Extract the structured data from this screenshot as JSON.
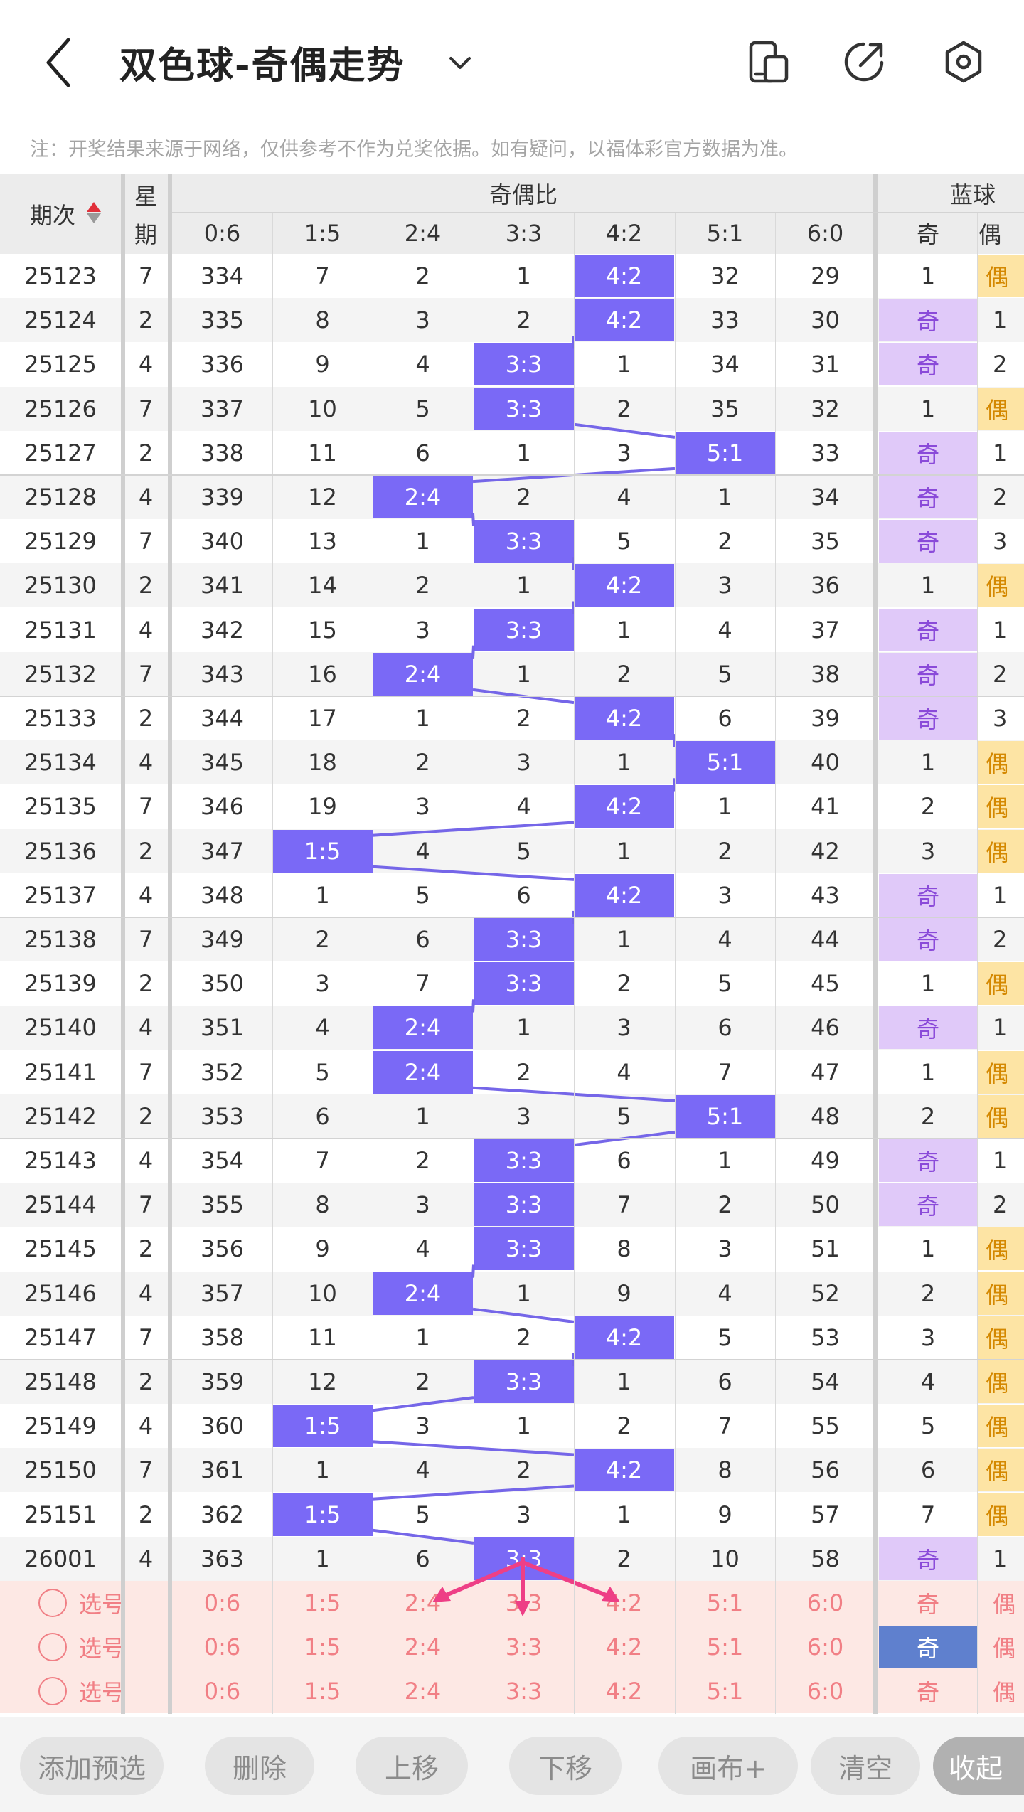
{
  "header": {
    "title": "双色球-奇偶走势"
  },
  "note": "注：开奖结果来源于网络，仅供参考不作为兑奖依据。如有疑问，以福体彩官方数据为准。",
  "table": {
    "period_label": "期次",
    "weekday_label_top": "星",
    "weekday_label_bottom": "期",
    "group_ratio": "奇偶比",
    "group_blue": "蓝球",
    "ratios": [
      "0:6",
      "1:5",
      "2:4",
      "3:3",
      "4:2",
      "5:1",
      "6:0"
    ],
    "blue_cols": [
      "奇",
      "偶"
    ],
    "rows": [
      {
        "period": "25123",
        "weekday": "7",
        "cells": [
          "334",
          "7",
          "2",
          "1",
          "4:2",
          "32",
          "29"
        ],
        "hit": 4,
        "blue_odd": "1",
        "blue_even": "偶"
      },
      {
        "period": "25124",
        "weekday": "2",
        "cells": [
          "335",
          "8",
          "3",
          "2",
          "4:2",
          "33",
          "30"
        ],
        "hit": 4,
        "blue_odd": "奇",
        "blue_even": "1"
      },
      {
        "period": "25125",
        "weekday": "4",
        "cells": [
          "336",
          "9",
          "4",
          "3:3",
          "1",
          "34",
          "31"
        ],
        "hit": 3,
        "blue_odd": "奇",
        "blue_even": "2"
      },
      {
        "period": "25126",
        "weekday": "7",
        "cells": [
          "337",
          "10",
          "5",
          "3:3",
          "2",
          "35",
          "32"
        ],
        "hit": 3,
        "blue_odd": "1",
        "blue_even": "偶"
      },
      {
        "period": "25127",
        "weekday": "2",
        "cells": [
          "338",
          "11",
          "6",
          "1",
          "3",
          "5:1",
          "33"
        ],
        "hit": 5,
        "blue_odd": "奇",
        "blue_even": "1"
      },
      {
        "period": "25128",
        "weekday": "4",
        "cells": [
          "339",
          "12",
          "2:4",
          "2",
          "4",
          "1",
          "34"
        ],
        "hit": 2,
        "blue_odd": "奇",
        "blue_even": "2"
      },
      {
        "period": "25129",
        "weekday": "7",
        "cells": [
          "340",
          "13",
          "1",
          "3:3",
          "5",
          "2",
          "35"
        ],
        "hit": 3,
        "blue_odd": "奇",
        "blue_even": "3"
      },
      {
        "period": "25130",
        "weekday": "2",
        "cells": [
          "341",
          "14",
          "2",
          "1",
          "4:2",
          "3",
          "36"
        ],
        "hit": 4,
        "blue_odd": "1",
        "blue_even": "偶"
      },
      {
        "period": "25131",
        "weekday": "4",
        "cells": [
          "342",
          "15",
          "3",
          "3:3",
          "1",
          "4",
          "37"
        ],
        "hit": 3,
        "blue_odd": "奇",
        "blue_even": "1"
      },
      {
        "period": "25132",
        "weekday": "7",
        "cells": [
          "343",
          "16",
          "2:4",
          "1",
          "2",
          "5",
          "38"
        ],
        "hit": 2,
        "blue_odd": "奇",
        "blue_even": "2"
      },
      {
        "period": "25133",
        "weekday": "2",
        "cells": [
          "344",
          "17",
          "1",
          "2",
          "4:2",
          "6",
          "39"
        ],
        "hit": 4,
        "blue_odd": "奇",
        "blue_even": "3"
      },
      {
        "period": "25134",
        "weekday": "4",
        "cells": [
          "345",
          "18",
          "2",
          "3",
          "1",
          "5:1",
          "40"
        ],
        "hit": 5,
        "blue_odd": "1",
        "blue_even": "偶"
      },
      {
        "period": "25135",
        "weekday": "7",
        "cells": [
          "346",
          "19",
          "3",
          "4",
          "4:2",
          "1",
          "41"
        ],
        "hit": 4,
        "blue_odd": "2",
        "blue_even": "偶"
      },
      {
        "period": "25136",
        "weekday": "2",
        "cells": [
          "347",
          "1:5",
          "4",
          "5",
          "1",
          "2",
          "42"
        ],
        "hit": 1,
        "blue_odd": "3",
        "blue_even": "偶"
      },
      {
        "period": "25137",
        "weekday": "4",
        "cells": [
          "348",
          "1",
          "5",
          "6",
          "4:2",
          "3",
          "43"
        ],
        "hit": 4,
        "blue_odd": "奇",
        "blue_even": "1"
      },
      {
        "period": "25138",
        "weekday": "7",
        "cells": [
          "349",
          "2",
          "6",
          "3:3",
          "1",
          "4",
          "44"
        ],
        "hit": 3,
        "blue_odd": "奇",
        "blue_even": "2"
      },
      {
        "period": "25139",
        "weekday": "2",
        "cells": [
          "350",
          "3",
          "7",
          "3:3",
          "2",
          "5",
          "45"
        ],
        "hit": 3,
        "blue_odd": "1",
        "blue_even": "偶"
      },
      {
        "period": "25140",
        "weekday": "4",
        "cells": [
          "351",
          "4",
          "2:4",
          "1",
          "3",
          "6",
          "46"
        ],
        "hit": 2,
        "blue_odd": "奇",
        "blue_even": "1"
      },
      {
        "period": "25141",
        "weekday": "7",
        "cells": [
          "352",
          "5",
          "2:4",
          "2",
          "4",
          "7",
          "47"
        ],
        "hit": 2,
        "blue_odd": "1",
        "blue_even": "偶"
      },
      {
        "period": "25142",
        "weekday": "2",
        "cells": [
          "353",
          "6",
          "1",
          "3",
          "5",
          "5:1",
          "48"
        ],
        "hit": 5,
        "blue_odd": "2",
        "blue_even": "偶"
      },
      {
        "period": "25143",
        "weekday": "4",
        "cells": [
          "354",
          "7",
          "2",
          "3:3",
          "6",
          "1",
          "49"
        ],
        "hit": 3,
        "blue_odd": "奇",
        "blue_even": "1"
      },
      {
        "period": "25144",
        "weekday": "7",
        "cells": [
          "355",
          "8",
          "3",
          "3:3",
          "7",
          "2",
          "50"
        ],
        "hit": 3,
        "blue_odd": "奇",
        "blue_even": "2"
      },
      {
        "period": "25145",
        "weekday": "2",
        "cells": [
          "356",
          "9",
          "4",
          "3:3",
          "8",
          "3",
          "51"
        ],
        "hit": 3,
        "blue_odd": "1",
        "blue_even": "偶"
      },
      {
        "period": "25146",
        "weekday": "4",
        "cells": [
          "357",
          "10",
          "2:4",
          "1",
          "9",
          "4",
          "52"
        ],
        "hit": 2,
        "blue_odd": "2",
        "blue_even": "偶"
      },
      {
        "period": "25147",
        "weekday": "7",
        "cells": [
          "358",
          "11",
          "1",
          "2",
          "4:2",
          "5",
          "53"
        ],
        "hit": 4,
        "blue_odd": "3",
        "blue_even": "偶"
      },
      {
        "period": "25148",
        "weekday": "2",
        "cells": [
          "359",
          "12",
          "2",
          "3:3",
          "1",
          "6",
          "54"
        ],
        "hit": 3,
        "blue_odd": "4",
        "blue_even": "偶"
      },
      {
        "period": "25149",
        "weekday": "4",
        "cells": [
          "360",
          "1:5",
          "3",
          "1",
          "2",
          "7",
          "55"
        ],
        "hit": 1,
        "blue_odd": "5",
        "blue_even": "偶"
      },
      {
        "period": "25150",
        "weekday": "7",
        "cells": [
          "361",
          "1",
          "4",
          "2",
          "4:2",
          "8",
          "56"
        ],
        "hit": 4,
        "blue_odd": "6",
        "blue_even": "偶"
      },
      {
        "period": "25151",
        "weekday": "2",
        "cells": [
          "362",
          "1:5",
          "5",
          "3",
          "1",
          "9",
          "57"
        ],
        "hit": 1,
        "blue_odd": "7",
        "blue_even": "偶"
      },
      {
        "period": "26001",
        "weekday": "4",
        "cells": [
          "363",
          "1",
          "6",
          "3:3",
          "2",
          "10",
          "58"
        ],
        "hit": 3,
        "blue_odd": "奇",
        "blue_even": "1"
      }
    ],
    "pick_rows": [
      {
        "label": "选号",
        "ratios": [
          "0:6",
          "1:5",
          "2:4",
          "3:3",
          "4:2",
          "5:1",
          "6:0"
        ],
        "blue_odd": "奇",
        "blue_even": "偶",
        "odd_selected": false
      },
      {
        "label": "选号",
        "ratios": [
          "0:6",
          "1:5",
          "2:4",
          "3:3",
          "4:2",
          "5:1",
          "6:0"
        ],
        "blue_odd": "奇",
        "blue_even": "偶",
        "odd_selected": true
      },
      {
        "label": "选号",
        "ratios": [
          "0:6",
          "1:5",
          "2:4",
          "3:3",
          "4:2",
          "5:1",
          "6:0"
        ],
        "blue_odd": "奇",
        "blue_even": "偶",
        "odd_selected": false
      }
    ]
  },
  "footer": {
    "add_preselect": "添加预选",
    "delete": "删除",
    "move_up": "上移",
    "move_down": "下移",
    "canvas_plus": "画布+",
    "clear": "清空",
    "collapse": "收起"
  },
  "colors": {
    "hit": "#7a69f6",
    "line": "#7566e8",
    "odd_bg": "#e0c9f9",
    "odd_text": "#8a4ad9",
    "even_bg": "#fde4a4",
    "pick_bg": "#fde8e4",
    "pick_text": "#f17f85",
    "arrow": "#ee3f86",
    "selected_blue": "#5f80ce"
  },
  "icons": [
    "back-icon",
    "chevron-down-icon",
    "layout-icon",
    "share-icon",
    "settings-icon",
    "sort-icon",
    "radio-icon",
    "arrows-icon"
  ]
}
